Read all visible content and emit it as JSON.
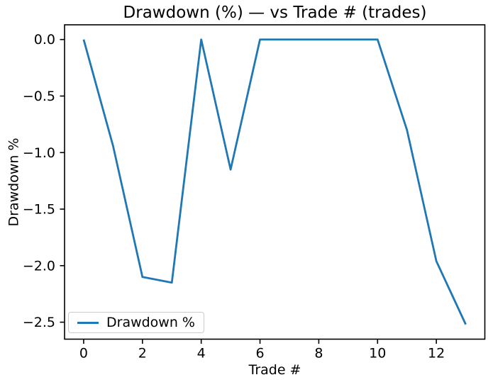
{
  "chart_data": {
    "type": "line",
    "title": "Drawdown (%) — vs Trade # (trades)",
    "xlabel": "Trade #",
    "ylabel": "Drawdown %",
    "x": [
      0,
      1,
      2,
      3,
      4,
      5,
      6,
      7,
      8,
      9,
      10,
      11,
      12,
      13
    ],
    "series": [
      {
        "name": "Drawdown %",
        "values": [
          0.0,
          -0.94,
          -2.1,
          -2.15,
          0.0,
          -1.15,
          0.0,
          0.0,
          0.0,
          0.0,
          0.0,
          -0.8,
          -1.96,
          -2.52
        ]
      }
    ],
    "line_color": "#1f77b4",
    "axis_color": "#000000",
    "background_color": "#ffffff",
    "xlim": [
      -0.65,
      13.65
    ],
    "ylim": [
      -2.65,
      0.13
    ],
    "x_ticks": [
      0,
      2,
      4,
      6,
      8,
      10,
      12
    ],
    "x_tick_labels": [
      "0",
      "2",
      "4",
      "6",
      "8",
      "10",
      "12"
    ],
    "y_ticks": [
      0.0,
      -0.5,
      -1.0,
      -1.5,
      -2.0,
      -2.5
    ],
    "y_tick_labels": [
      "0.0",
      "−0.5",
      "−1.0",
      "−1.5",
      "−2.0",
      "−2.5"
    ],
    "grid": false,
    "legend": {
      "position": "lower left",
      "entries": [
        "Drawdown %"
      ]
    }
  }
}
